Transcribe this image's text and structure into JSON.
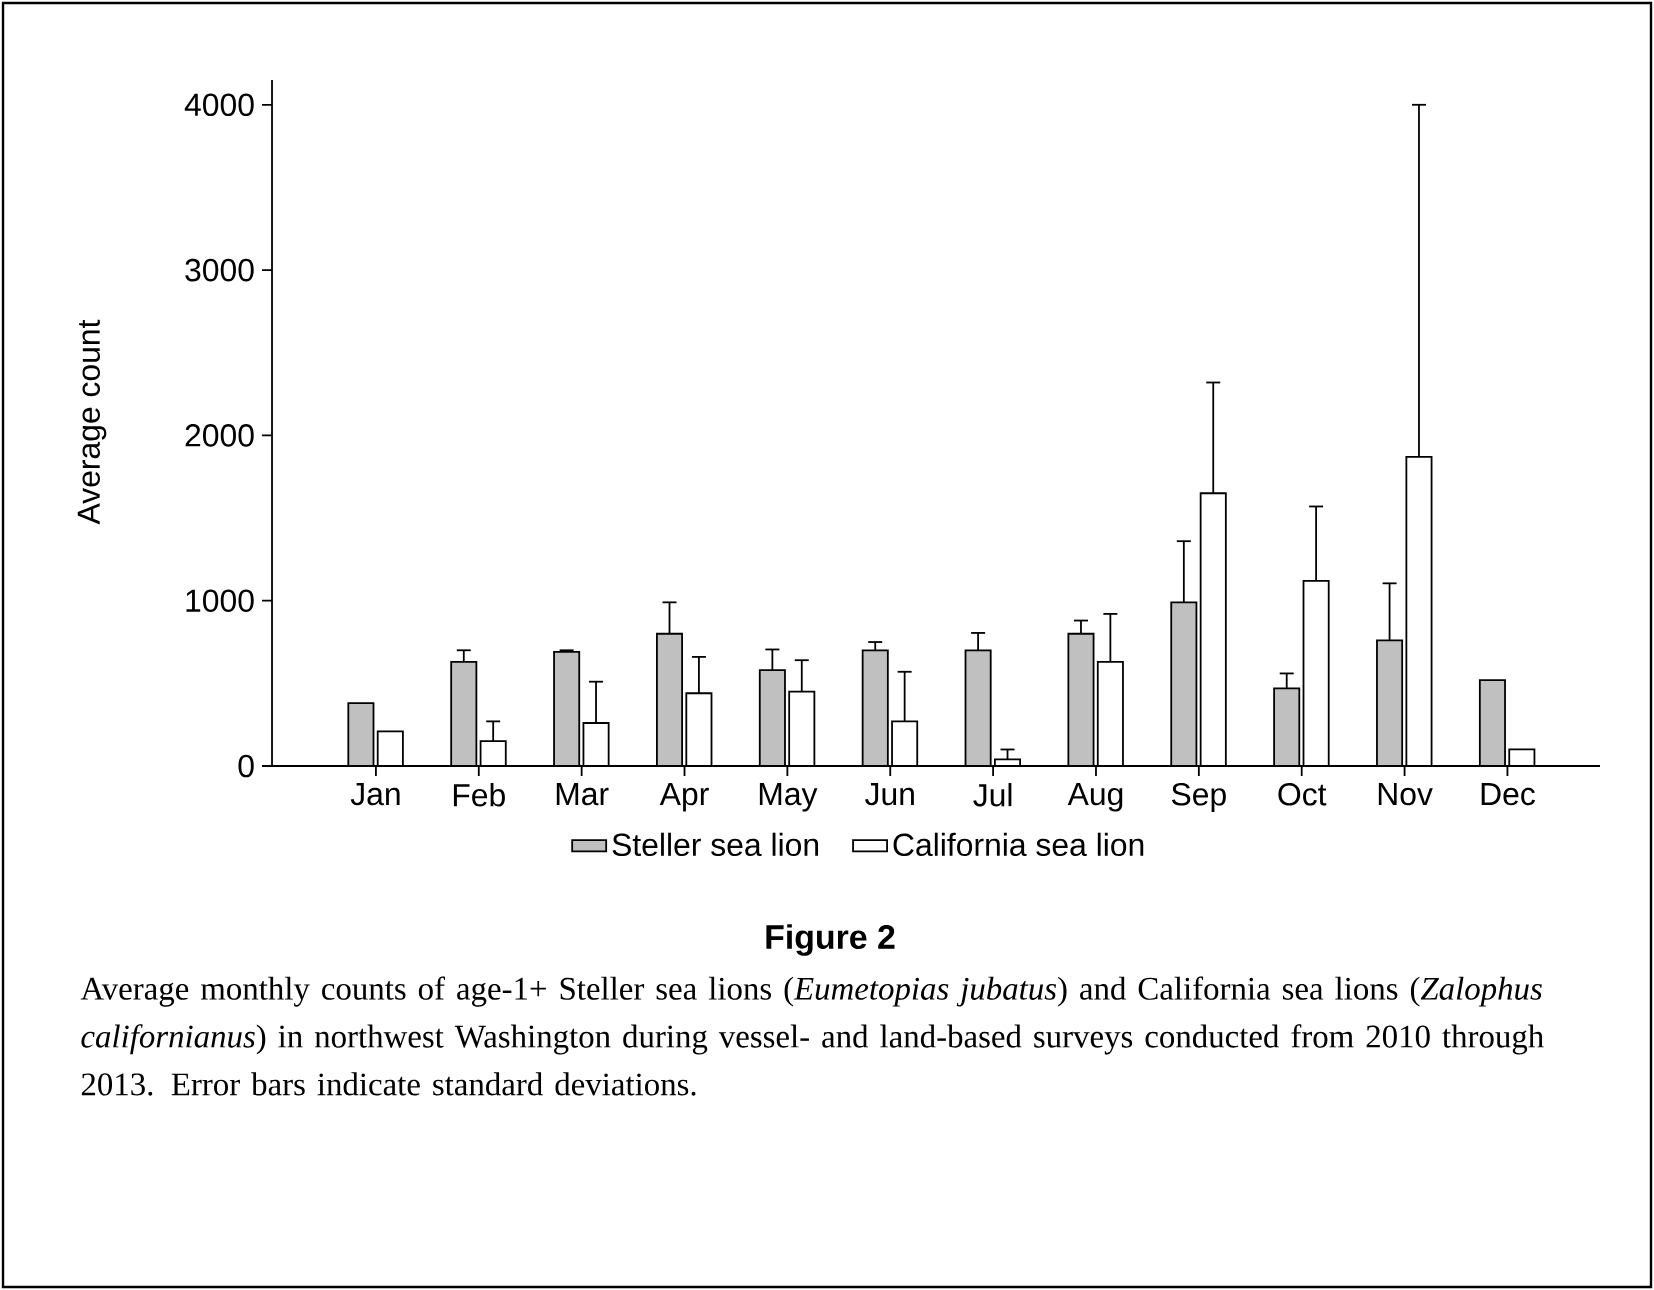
{
  "chart_data": {
    "type": "bar",
    "title": "Figure 2",
    "ylabel": "Average count",
    "annotations": [
      "Average monthly counts of age-1+ Steller sea lions (*Eumetopias jubatus*) and California sea lions (*Zalophus californianus*) in northwest Washington during vessel- and land-based surveys conducted from 2010 through 2013. Error bars indicate standard deviations."
    ],
    "categories": [
      "Jan",
      "Feb",
      "Mar",
      "Apr",
      "May",
      "Jun",
      "Jul",
      "Aug",
      "Sep",
      "Oct",
      "Nov",
      "Dec"
    ],
    "series": [
      {
        "name": "Steller sea lion",
        "color": "#c0c0c0",
        "values": [
          380,
          630,
          690,
          800,
          580,
          700,
          700,
          800,
          990,
          470,
          760,
          520
        ],
        "errors": [
          null,
          70,
          10,
          190,
          125,
          50,
          105,
          80,
          370,
          90,
          345,
          null
        ]
      },
      {
        "name": "California sea lion",
        "color": "#ffffff",
        "values": [
          210,
          150,
          260,
          440,
          450,
          270,
          40,
          630,
          1650,
          1120,
          1870,
          100
        ],
        "errors": [
          null,
          120,
          250,
          220,
          190,
          300,
          60,
          290,
          670,
          450,
          2130,
          null
        ]
      }
    ],
    "ylim": [
      0,
      4150
    ],
    "yticks": [
      0,
      1000,
      2000,
      3000,
      4000
    ],
    "grid": false,
    "legend": "bottom"
  }
}
